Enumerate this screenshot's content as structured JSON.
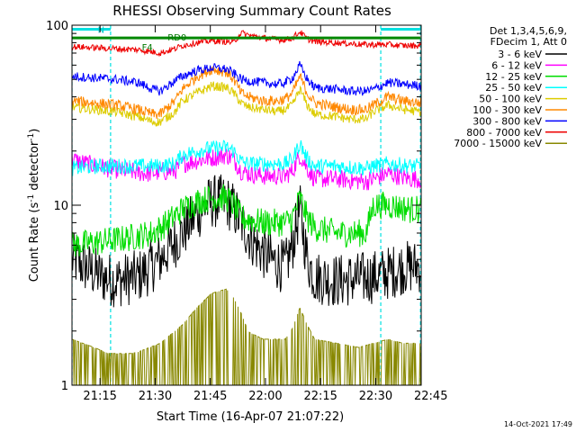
{
  "chart_data": {
    "type": "line",
    "title": "RHESSI Observing Summary Count Rates",
    "xlabel": "Start Time (16-Apr-07 21:07:22)",
    "ylabel_main": "Count Rate (s",
    "ylabel_exp": "-1",
    "ylabel_mid": " detector",
    "ylabel_exp2": "-1",
    "ylabel_end": ")",
    "y_scale": "log",
    "ylim": [
      1,
      100
    ],
    "xlim_minutes": [
      0,
      95
    ],
    "x_ticks": [
      "21:15",
      "21:30",
      "21:45",
      "22:00",
      "22:15",
      "22:30",
      "22:45"
    ],
    "x_tick_minutes": [
      7.63,
      22.63,
      37.63,
      52.63,
      67.63,
      82.63,
      97.63
    ],
    "y_ticks": [
      "1",
      "10",
      "100"
    ],
    "y_tick_values": [
      1,
      10,
      100
    ],
    "legend_header": [
      "Det 1,3,4,5,6,9,",
      "FDecim 1, Att 0"
    ],
    "legend_position": "right",
    "annotations": {
      "n_label": "N",
      "rd_label": "RD0",
      "f_label": "F4"
    },
    "series": [
      {
        "name": "3 - 6 keV",
        "color": "#000000",
        "x": [
          0,
          4,
          8,
          12,
          18,
          24,
          30,
          34,
          38,
          42,
          44,
          46,
          50,
          54,
          58,
          60,
          62,
          64,
          66,
          72,
          78,
          82,
          86,
          90,
          95
        ],
        "y": [
          5,
          4.5,
          4,
          3.8,
          4,
          5,
          7,
          9,
          10.5,
          10.5,
          9.5,
          8,
          6,
          5,
          4.5,
          6,
          9.5,
          5,
          4,
          3.8,
          3.9,
          4,
          4.2,
          4.5,
          4.6
        ]
      },
      {
        "name": "6 - 12 keV",
        "color": "#ff00ff",
        "x": [
          0,
          4,
          10,
          20,
          28,
          30,
          36,
          42,
          44,
          46,
          48,
          52,
          58,
          60,
          62,
          64,
          66,
          72,
          80,
          82,
          86,
          92,
          95
        ],
        "y": [
          18,
          17,
          16,
          15,
          15.5,
          17,
          18,
          19,
          18,
          15.5,
          15,
          14.5,
          14.5,
          15.5,
          19,
          16,
          14,
          14,
          13.5,
          14,
          15,
          14,
          14
        ]
      },
      {
        "name": "12 - 25 keV",
        "color": "#00dd00",
        "x": [
          0,
          6,
          14,
          22,
          26,
          30,
          34,
          38,
          42,
          44,
          46,
          52,
          58,
          60,
          62,
          64,
          66,
          72,
          80,
          82,
          86,
          92,
          95
        ],
        "y": [
          6,
          6.2,
          6.5,
          7,
          8,
          9.5,
          10.5,
          11,
          11,
          10,
          8.5,
          8,
          8,
          8.5,
          11,
          8.5,
          7.5,
          7,
          7,
          10,
          10,
          9.5,
          9.5
        ]
      },
      {
        "name": "25 - 50 keV",
        "color": "#00ffff",
        "x": [
          0,
          8,
          16,
          24,
          28,
          30,
          36,
          42,
          44,
          46,
          48,
          52,
          58,
          60,
          62,
          64,
          66,
          72,
          80,
          82,
          86,
          92,
          95
        ],
        "y": [
          16,
          16.5,
          16.5,
          16.5,
          17,
          19,
          20.5,
          21,
          20,
          17.5,
          17,
          17,
          17,
          18,
          22,
          18,
          16.5,
          16.5,
          16,
          16.5,
          17,
          16.5,
          16.5
        ]
      },
      {
        "name": "50 - 100 keV",
        "color": "#ddcc00",
        "x": [
          0,
          6,
          12,
          18,
          22,
          24,
          28,
          30,
          34,
          38,
          42,
          44,
          46,
          48,
          52,
          56,
          58,
          60,
          62,
          64,
          66,
          72,
          76,
          80,
          82,
          86,
          90,
          95
        ],
        "y": [
          35,
          34,
          33,
          31,
          29,
          29,
          33,
          38,
          42,
          46,
          45,
          42,
          37,
          35,
          34,
          33,
          34,
          36,
          44,
          36,
          32,
          31,
          30,
          30,
          33,
          36,
          34,
          33
        ]
      },
      {
        "name": "100 - 300 keV",
        "color": "#ff8800",
        "x": [
          0,
          6,
          12,
          18,
          22,
          24,
          28,
          30,
          34,
          38,
          42,
          44,
          46,
          48,
          52,
          56,
          58,
          60,
          62,
          64,
          66,
          72,
          76,
          80,
          82,
          86,
          90,
          95
        ],
        "y": [
          38,
          37,
          36,
          34,
          32,
          32,
          38,
          44,
          52,
          57,
          55,
          50,
          42,
          40,
          38,
          38,
          39,
          42,
          52,
          42,
          37,
          35,
          34,
          34,
          36,
          40,
          38,
          37
        ]
      },
      {
        "name": "300 - 800 keV",
        "color": "#0000ff",
        "x": [
          0,
          6,
          12,
          18,
          22,
          24,
          28,
          30,
          34,
          38,
          42,
          44,
          46,
          48,
          52,
          56,
          58,
          60,
          62,
          64,
          66,
          72,
          76,
          80,
          82,
          86,
          90,
          95
        ],
        "y": [
          52,
          51,
          50,
          48,
          44,
          43,
          49,
          52,
          56,
          58,
          57,
          54,
          50,
          49,
          48,
          47,
          48,
          51,
          60,
          50,
          45,
          44,
          43,
          43,
          44,
          48,
          47,
          46
        ]
      },
      {
        "name": "800 - 7000 keV",
        "color": "#ee0000",
        "x": [
          0,
          6,
          12,
          18,
          22,
          24,
          28,
          30,
          34,
          38,
          42,
          44,
          46,
          48,
          52,
          56,
          58,
          60,
          62,
          64,
          66,
          72,
          76,
          80,
          82,
          86,
          90,
          95
        ],
        "y": [
          76,
          75,
          74,
          73,
          71,
          70,
          74,
          77,
          80,
          82,
          81,
          80,
          91,
          88,
          85,
          83,
          83,
          85,
          92,
          84,
          81,
          80,
          79,
          78,
          78,
          78,
          77,
          77
        ]
      },
      {
        "name": "7000 - 15000 keV",
        "color": "#888800",
        "x": [
          0,
          6,
          12,
          18,
          24,
          30,
          34,
          38,
          42,
          44,
          46,
          48,
          52,
          58,
          60,
          62,
          64,
          66,
          72,
          78,
          82,
          86,
          90,
          95
        ],
        "y": [
          2,
          1.8,
          1.6,
          1.7,
          1.9,
          2.4,
          3,
          3.6,
          3.8,
          3.4,
          2.8,
          2.2,
          2,
          2,
          2.3,
          3,
          2.4,
          2,
          1.9,
          1.8,
          1.9,
          2,
          1.9,
          1.9
        ]
      }
    ],
    "overlays": [
      {
        "name": "N",
        "color": "#00e0e0",
        "x": [
          0,
          10.5
        ],
        "y": [
          95,
          95
        ]
      },
      {
        "name": "N",
        "color": "#00e0e0",
        "x": [
          84,
          95
        ],
        "y": [
          95,
          95
        ]
      },
      {
        "name": "RD0",
        "color": "#008800",
        "x": [
          0,
          94.8
        ],
        "y": [
          85,
          85
        ]
      }
    ],
    "vlines": [
      {
        "color": "#00e0e0",
        "x": 0
      },
      {
        "color": "#00e0e0",
        "x": 10.5
      },
      {
        "color": "#00e0e0",
        "x": 84
      },
      {
        "color": "#00e0e0",
        "x": 94.8
      }
    ]
  },
  "footer": {
    "timestamp": "14-Oct-2021 17:49"
  },
  "colors": {
    "background": "#ffffff",
    "axes": "#000000"
  }
}
